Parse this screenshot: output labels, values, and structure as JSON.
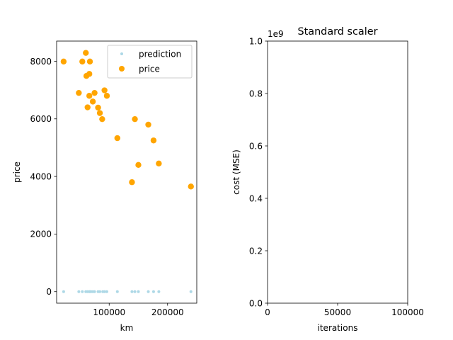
{
  "chart_data": [
    {
      "type": "scatter",
      "title": "",
      "xlabel": "km",
      "ylabel": "price",
      "xlim": [
        10000,
        250000
      ],
      "ylim": [
        -400,
        8700
      ],
      "xticks": [
        100000,
        200000
      ],
      "xtick_labels": [
        "100000",
        "200000"
      ],
      "yticks": [
        0,
        2000,
        4000,
        6000,
        8000
      ],
      "ytick_labels": [
        "0",
        "2000",
        "4000",
        "6000",
        "8000"
      ],
      "grid": false,
      "legend_position": "top-right",
      "series": [
        {
          "name": "prediction",
          "color": "#add8e6",
          "marker": "small-dot",
          "x": [
            22000,
            48000,
            54000,
            60000,
            63000,
            66000,
            67000,
            69000,
            72000,
            75000,
            81000,
            84000,
            89000,
            92000,
            96000,
            114000,
            139000,
            144000,
            150000,
            167000,
            176000,
            185000,
            240000
          ],
          "y": [
            0,
            0,
            0,
            0,
            0,
            0,
            0,
            0,
            0,
            0,
            0,
            0,
            0,
            0,
            0,
            0,
            0,
            0,
            0,
            0,
            0,
            0,
            0
          ]
        },
        {
          "name": "price",
          "color": "#ffa500",
          "marker": "dot",
          "x": [
            22000,
            48000,
            54000,
            60000,
            61000,
            63000,
            66000,
            66000,
            67000,
            72000,
            75000,
            81000,
            84000,
            88000,
            92000,
            96000,
            114000,
            139000,
            144000,
            150000,
            167000,
            176000,
            185000,
            240000
          ],
          "y": [
            7990,
            6900,
            7990,
            8290,
            7490,
            6400,
            7560,
            6800,
            7990,
            6600,
            6900,
            6390,
            6200,
            5990,
            6990,
            6800,
            5330,
            3800,
            5990,
            4400,
            5800,
            5250,
            4450,
            3650
          ]
        }
      ]
    },
    {
      "type": "line",
      "title": "Standard scaler",
      "xlabel": "iterations",
      "ylabel": "cost (MSE)",
      "xlim": [
        0,
        100000
      ],
      "ylim": [
        0,
        1000000000
      ],
      "xticks": [
        0,
        50000,
        100000
      ],
      "xtick_labels": [
        "0",
        "50000",
        "100000"
      ],
      "yticks": [
        0,
        200000000,
        400000000,
        600000000,
        800000000,
        1000000000
      ],
      "ytick_labels": [
        "0.0",
        "0.2",
        "0.4",
        "0.6",
        "0.8",
        "1.0"
      ],
      "offset_text": "1e9",
      "grid": false,
      "series": []
    }
  ]
}
